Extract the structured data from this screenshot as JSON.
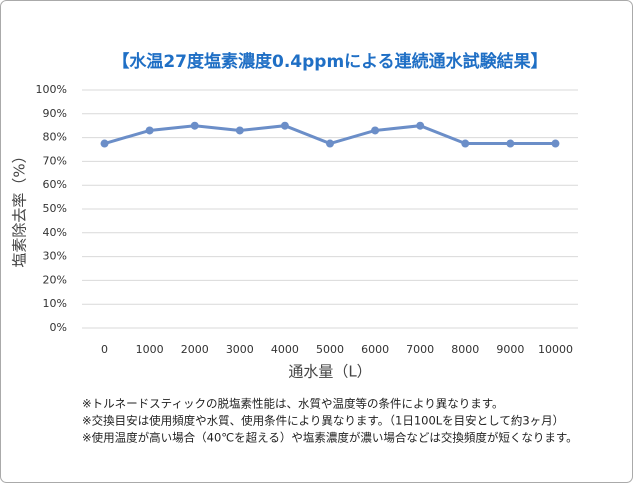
{
  "chart_data": {
    "type": "line",
    "title": "【水温27度塩素濃度0.4ppmによる連続通水試験結果】",
    "x_label": "通水量（L）",
    "y_label": "塩素除去率（%）",
    "x": [
      0,
      1000,
      2000,
      3000,
      4000,
      5000,
      6000,
      7000,
      8000,
      9000,
      10000
    ],
    "series": [
      {
        "name": "塩素除去率",
        "color": "#6b8ec8",
        "values": [
          77.5,
          83,
          85,
          83,
          85,
          77.5,
          83,
          85,
          77.5,
          77.5,
          77.5
        ]
      }
    ],
    "xlim": [
      -500,
      10500
    ],
    "xticks": [
      0,
      1000,
      2000,
      3000,
      4000,
      5000,
      6000,
      7000,
      8000,
      9000,
      10000
    ],
    "ylim": [
      0,
      100
    ],
    "yticks": [
      {
        "value": 0,
        "label": "0%"
      },
      {
        "value": 10,
        "label": "10%"
      },
      {
        "value": 20,
        "label": "20%"
      },
      {
        "value": 30,
        "label": "30%"
      },
      {
        "value": 40,
        "label": "40%"
      },
      {
        "value": 50,
        "label": "50%"
      },
      {
        "value": 60,
        "label": "60%"
      },
      {
        "value": 70,
        "label": "70%"
      },
      {
        "value": 80,
        "label": "80%"
      },
      {
        "value": 90,
        "label": "90%"
      },
      {
        "value": 100,
        "label": "100%"
      }
    ],
    "grid": true,
    "notes": [
      "※トルネードスティックの脱塩素性能は、水質や温度等の条件により異なります。",
      "※交換目安は使用頻度や水質、使用条件により異なります。（1日100Lを目安として約3ヶ月）",
      "※使用温度が高い場合（40℃を超える）や塩素濃度が濃い場合などは交換頻度が短くなります。"
    ]
  }
}
